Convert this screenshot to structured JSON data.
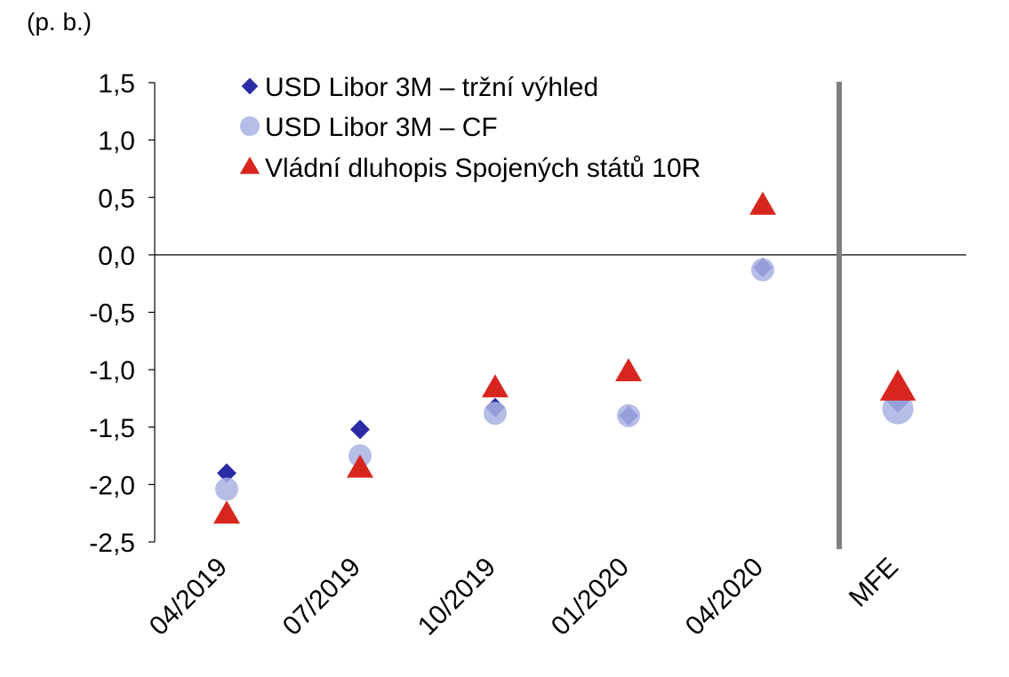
{
  "chart_data": {
    "type": "scatter",
    "unit_label": "(p. b.)",
    "categories": [
      "04/2019",
      "07/2019",
      "10/2019",
      "01/2020",
      "04/2020",
      "MFE"
    ],
    "ylim": [
      -2.5,
      1.5
    ],
    "yticks": [
      1.5,
      1.0,
      0.5,
      0.0,
      -0.5,
      -1.0,
      -1.5,
      -2.0,
      -2.5
    ],
    "ytick_labels": [
      "1,5",
      "1,0",
      "0,5",
      "0,0",
      "-0,5",
      "-1,0",
      "-1,5",
      "-2,0",
      "-2,5"
    ],
    "legend_position": "top",
    "series": [
      {
        "name": "USD Libor 3M – tržní výhled",
        "marker": "diamond",
        "color": "#2b2ba6",
        "values": [
          -1.9,
          -1.52,
          -1.33,
          -1.4,
          -0.11,
          -1.26
        ]
      },
      {
        "name": "USD Libor 3M – CF",
        "marker": "circle",
        "color": "#a9b3e3",
        "values": [
          -2.04,
          -1.75,
          -1.38,
          -1.4,
          -0.13,
          -1.34
        ]
      },
      {
        "name": "Vládní dluhopis Spojených států 10R",
        "marker": "triangle",
        "color": "#d7261e",
        "values": [
          -2.26,
          -1.86,
          -1.16,
          -1.02,
          0.43,
          -1.16
        ]
      }
    ],
    "separator_before_category": "MFE"
  }
}
